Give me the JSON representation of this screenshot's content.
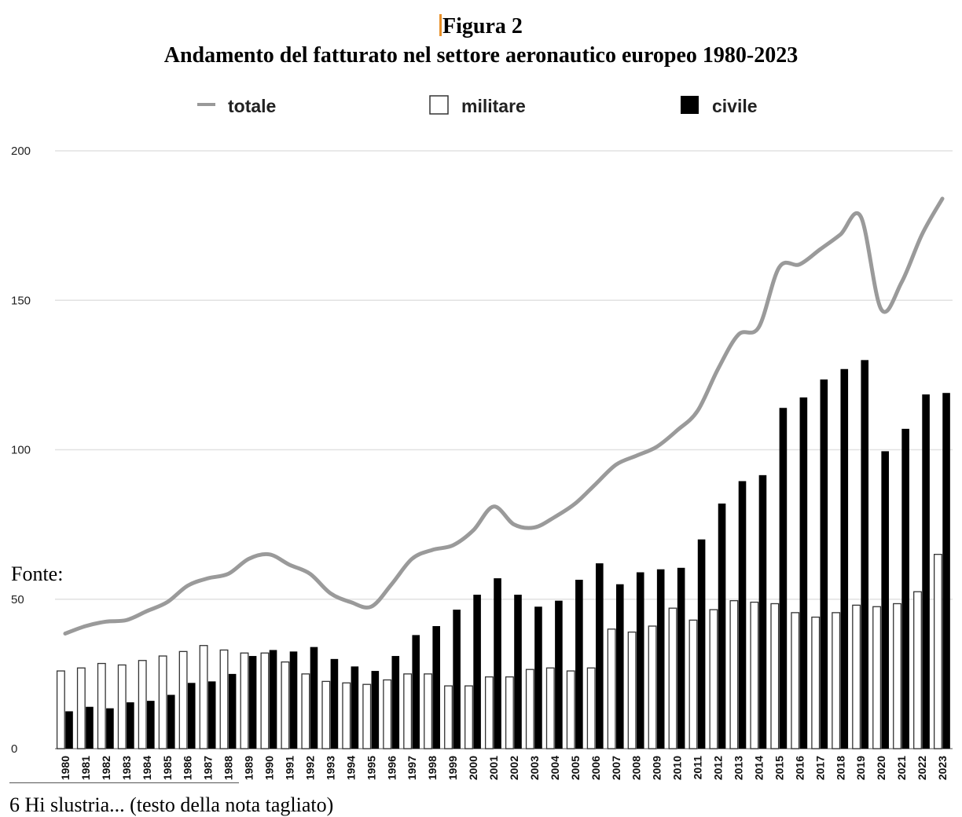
{
  "figure": {
    "label": "Figura 2",
    "title": "Andamento del fatturato nel settore aeronautico europeo 1980-2023"
  },
  "fonte": "Fonte:",
  "footnote": "6 Hi slustria... (testo della nota tagliato)",
  "chart_data": {
    "type": "bar",
    "title": "",
    "xlabel": "",
    "ylabel": "",
    "ylim": [
      0,
      200
    ],
    "yticks": [
      0,
      50,
      100,
      150,
      200
    ],
    "grid": true,
    "legend_placement": "top",
    "categories": [
      "1980",
      "1981",
      "1982",
      "1983",
      "1984",
      "1985",
      "1986",
      "1987",
      "1988",
      "1989",
      "1990",
      "1991",
      "1992",
      "1993",
      "1994",
      "1995",
      "1996",
      "1997",
      "1998",
      "1999",
      "2000",
      "2001",
      "2002",
      "2003",
      "2004",
      "2005",
      "2006",
      "2007",
      "2008",
      "2009",
      "2010",
      "2011",
      "2012",
      "2013",
      "2014",
      "2015",
      "2016",
      "2017",
      "2018",
      "2019",
      "2020",
      "2021",
      "2022",
      "2023"
    ],
    "series": [
      {
        "name": "militare",
        "kind": "bar",
        "color": "#ffffff",
        "values": [
          26,
          27,
          28.5,
          28,
          29.5,
          31,
          32.5,
          34.5,
          33,
          32,
          32,
          29,
          25,
          22.5,
          22,
          21.5,
          23,
          25,
          25,
          21,
          21,
          24,
          24,
          26.5,
          27,
          26,
          27,
          40,
          39,
          41,
          47,
          43,
          46.5,
          49.5,
          49,
          48.5,
          45.5,
          44,
          45.5,
          48,
          47.5,
          48.5,
          52.5,
          65
        ]
      },
      {
        "name": "civile",
        "kind": "bar",
        "color": "#000000",
        "values": [
          12.5,
          14,
          13.5,
          15.5,
          16,
          18,
          22,
          22.5,
          25,
          31,
          33,
          32.5,
          34,
          30,
          27.5,
          26,
          31,
          38,
          41,
          46.5,
          51.5,
          57,
          51.5,
          47.5,
          49.5,
          56.5,
          62,
          55,
          59,
          60,
          60.5,
          70,
          82,
          89.5,
          91.5,
          114,
          117.5,
          123.5,
          127,
          130,
          99.5,
          107,
          118.5,
          119
        ]
      },
      {
        "name": "totale",
        "kind": "line",
        "color": "#999999",
        "values": [
          38.5,
          41,
          42.5,
          43,
          46,
          49,
          54.5,
          57,
          58.5,
          63.5,
          65,
          61.5,
          58.5,
          52,
          49,
          47.5,
          55,
          63.5,
          66.5,
          68,
          73,
          81,
          75,
          74,
          77.5,
          82,
          88.5,
          95,
          98,
          101,
          106.5,
          113,
          127,
          138.5,
          141,
          161,
          162,
          167,
          172,
          178,
          147,
          156,
          172,
          184
        ]
      }
    ]
  }
}
